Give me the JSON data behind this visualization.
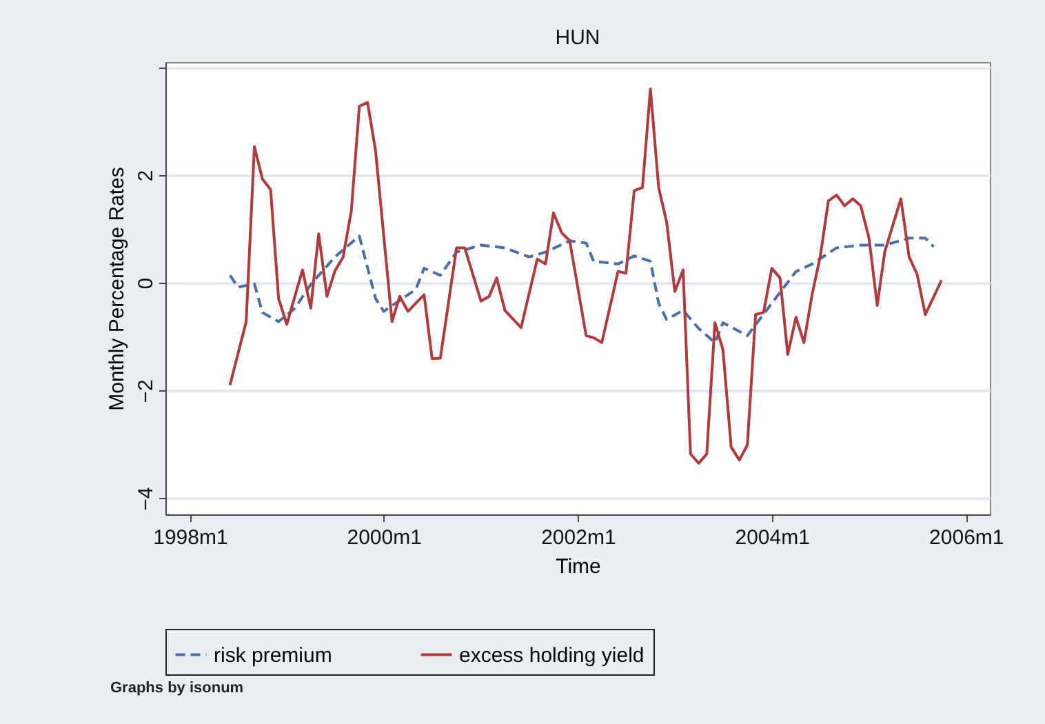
{
  "chart_data": {
    "type": "line",
    "title": "HUN",
    "xlabel": "Time",
    "ylabel": "Monthly Percentage Rates",
    "annotations": [
      "Graphs by isonum"
    ],
    "xlim": [
      "1997-10",
      "2006-04"
    ],
    "xticks": [
      {
        "value": "1998-01",
        "label": "1998m1"
      },
      {
        "value": "2000-01",
        "label": "2000m1"
      },
      {
        "value": "2002-01",
        "label": "2002m1"
      },
      {
        "value": "2004-01",
        "label": "2004m1"
      },
      {
        "value": "2006-01",
        "label": "2006m1"
      }
    ],
    "ylim": [
      -4.3,
      4.1
    ],
    "yticks": [
      -4,
      -2,
      0,
      2,
      {
        "value": 4,
        "label": null
      }
    ],
    "grid": "y",
    "legend": "bottom",
    "series": [
      {
        "name": "risk premium",
        "color": "#4a6ea8",
        "line_style": "dashed",
        "x": [
          "1998-06",
          "1998-07",
          "1998-09",
          "1998-10",
          "1998-12",
          "1999-02",
          "1999-04",
          "1999-07",
          "1999-10",
          "1999-12",
          "2000-01",
          "2000-05",
          "2000-06",
          "2000-08",
          "2000-10",
          "2001-01",
          "2001-04",
          "2001-07",
          "2001-09",
          "2001-12",
          "2002-02",
          "2002-03",
          "2002-06",
          "2002-08",
          "2002-10",
          "2002-11",
          "2002-12",
          "2003-02",
          "2003-04",
          "2003-06",
          "2003-07",
          "2003-10",
          "2004-01",
          "2004-04",
          "2004-06",
          "2004-09",
          "2004-12",
          "2005-03",
          "2005-06",
          "2005-08",
          "2005-09"
        ],
        "values": [
          0.14,
          -0.08,
          -0.02,
          -0.55,
          -0.72,
          -0.47,
          -0.03,
          0.48,
          0.87,
          -0.29,
          -0.53,
          -0.12,
          0.27,
          0.14,
          0.57,
          0.7,
          0.65,
          0.48,
          0.57,
          0.78,
          0.74,
          0.4,
          0.35,
          0.5,
          0.4,
          -0.38,
          -0.68,
          -0.51,
          -0.85,
          -1.11,
          -0.74,
          -0.98,
          -0.38,
          0.21,
          0.35,
          0.65,
          0.7,
          0.7,
          0.83,
          0.83,
          0.67
        ]
      },
      {
        "name": "excess holding yield",
        "color": "#b03a3e",
        "line_style": "solid",
        "x": [
          "1998-06",
          "1998-08",
          "1998-09",
          "1998-10",
          "1998-11",
          "1998-12",
          "1999-01",
          "1999-03",
          "1999-04",
          "1999-05",
          "1999-06",
          "1999-07",
          "1999-08",
          "1999-09",
          "1999-10",
          "1999-11",
          "1999-12",
          "2000-02",
          "2000-03",
          "2000-04",
          "2000-06",
          "2000-07",
          "2000-08",
          "2000-10",
          "2000-11",
          "2001-01",
          "2001-02",
          "2001-03",
          "2001-04",
          "2001-06",
          "2001-08",
          "2001-09",
          "2001-10",
          "2001-11",
          "2001-12",
          "2002-02",
          "2002-03",
          "2002-04",
          "2002-06",
          "2002-07",
          "2002-08",
          "2002-09",
          "2002-10",
          "2002-11",
          "2002-12",
          "2003-01",
          "2003-02",
          "2003-03",
          "2003-04",
          "2003-05",
          "2003-06",
          "2003-07",
          "2003-08",
          "2003-09",
          "2003-10",
          "2003-11",
          "2003-12",
          "2004-01",
          "2004-02",
          "2004-03",
          "2004-04",
          "2004-05",
          "2004-06",
          "2004-07",
          "2004-08",
          "2004-09",
          "2004-10",
          "2004-11",
          "2004-12",
          "2005-01",
          "2005-02",
          "2005-03",
          "2005-05",
          "2005-06",
          "2005-07",
          "2005-08",
          "2005-10"
        ],
        "values": [
          -1.9,
          -0.72,
          2.53,
          1.93,
          1.73,
          -0.29,
          -0.77,
          0.24,
          -0.47,
          0.91,
          -0.25,
          0.22,
          0.48,
          1.34,
          3.28,
          3.35,
          2.46,
          -0.72,
          -0.25,
          -0.53,
          -0.22,
          -1.41,
          -1.4,
          0.65,
          0.65,
          -0.34,
          -0.25,
          0.09,
          -0.51,
          -0.83,
          0.44,
          0.35,
          1.3,
          0.93,
          0.78,
          -0.98,
          -1.02,
          -1.11,
          0.21,
          0.18,
          1.71,
          1.77,
          3.6,
          1.77,
          1.13,
          -0.16,
          0.24,
          -3.18,
          -3.35,
          -3.18,
          -0.74,
          -1.24,
          -3.05,
          -3.29,
          -3.01,
          -0.59,
          -0.55,
          0.27,
          0.09,
          -1.33,
          -0.64,
          -1.11,
          -0.21,
          0.48,
          1.52,
          1.63,
          1.43,
          1.56,
          1.43,
          0.83,
          -0.42,
          0.57,
          1.56,
          0.48,
          0.16,
          -0.59,
          0.05
        ]
      }
    ]
  }
}
